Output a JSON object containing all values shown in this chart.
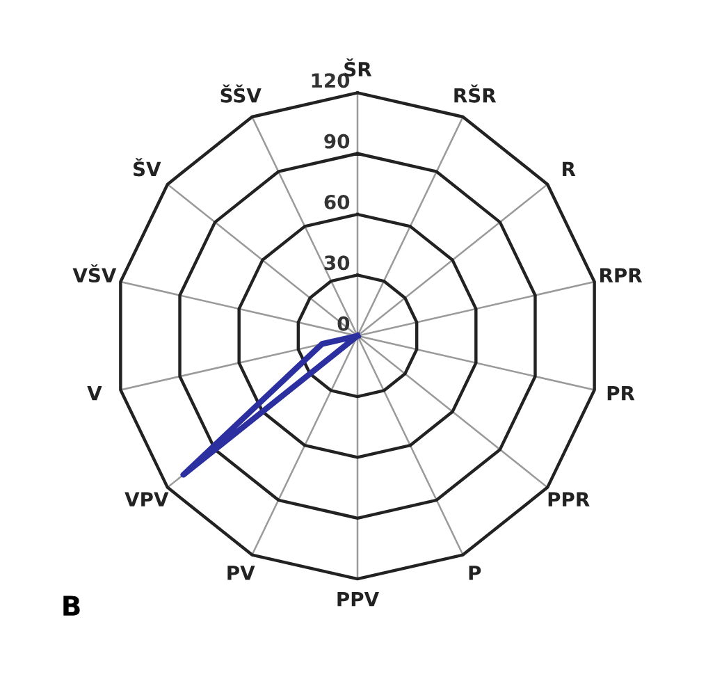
{
  "chart_data": {
    "type": "radar",
    "categories": [
      "ŠR",
      "RŠR",
      "R",
      "RPR",
      "PR",
      "PPR",
      "P",
      "PPV",
      "PV",
      "VPV",
      "V",
      "VŠV",
      "ŠV",
      "ŠŠV"
    ],
    "series": [
      {
        "color": "#2b2fa0",
        "values": [
          0,
          0,
          0,
          0,
          0,
          0,
          0,
          0,
          0,
          110,
          18,
          0,
          0,
          0
        ]
      }
    ],
    "ylim": [
      0,
      120
    ],
    "yticks": [
      0,
      30,
      60,
      90,
      120
    ],
    "grid": true,
    "marker": "none",
    "line_style": "solid",
    "annotations": [
      "B"
    ]
  }
}
